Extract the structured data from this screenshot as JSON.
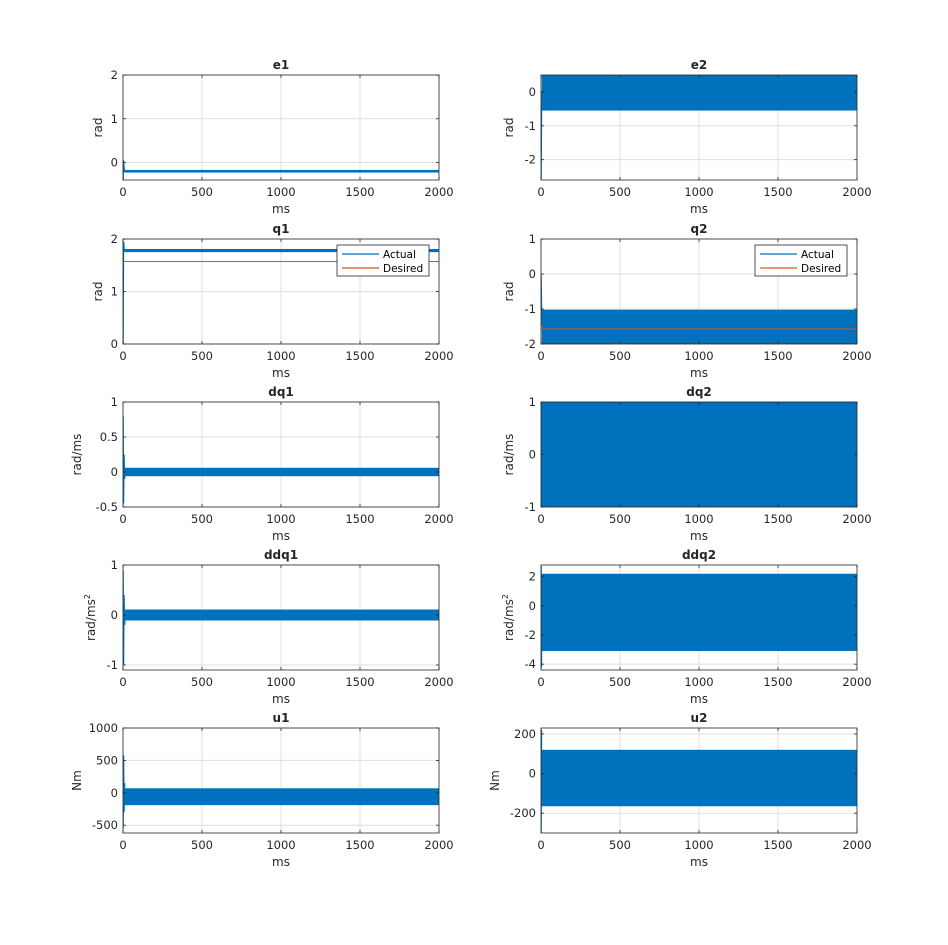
{
  "colors": {
    "actual": "#0072BD",
    "desired": "#D95319",
    "axis": "#262626",
    "grid": "#DFDFDF",
    "background": "#FFFFFF"
  },
  "chart_data": [
    {
      "id": "e1",
      "type": "line",
      "title": "e1",
      "xlabel": "ms",
      "ylabel": "rad",
      "xlim": [
        0,
        2000
      ],
      "ylim": [
        -0.4,
        2
      ],
      "xticks": [
        0,
        500,
        1000,
        1500,
        2000
      ],
      "yticks": [
        0,
        1,
        2
      ],
      "ytick_labels": [
        "0",
        "1",
        "2"
      ],
      "grid": true,
      "legend": null,
      "series": [
        {
          "color": "#0072BD",
          "points": [
            [
              0,
              -0.4
            ],
            [
              3,
              0.05
            ],
            [
              8,
              -0.2
            ],
            [
              2000,
              -0.2
            ]
          ],
          "band": {
            "x": [
              8,
              2000
            ],
            "y": [
              -0.23,
              -0.17
            ]
          }
        }
      ]
    },
    {
      "id": "e2",
      "type": "line",
      "title": "e2",
      "xlabel": "ms",
      "ylabel": "rad",
      "xlim": [
        0,
        2000
      ],
      "ylim": [
        -2.6,
        0.5
      ],
      "xticks": [
        0,
        500,
        1000,
        1500,
        2000
      ],
      "yticks": [
        -2,
        -1,
        0
      ],
      "ytick_labels": [
        "-2",
        "-1",
        "0"
      ],
      "grid": true,
      "legend": null,
      "series": [
        {
          "color": "#0072BD",
          "points": [
            [
              0,
              -2.6
            ],
            [
              3,
              -0.5
            ],
            [
              8,
              0
            ]
          ],
          "band": {
            "x": [
              5,
              2000
            ],
            "y": [
              -0.55,
              0.5
            ]
          }
        }
      ]
    },
    {
      "id": "q1",
      "type": "line",
      "title": "q1",
      "xlabel": "ms",
      "ylabel": "rad",
      "xlim": [
        0,
        2000
      ],
      "ylim": [
        0,
        2
      ],
      "xticks": [
        0,
        500,
        1000,
        1500,
        2000
      ],
      "yticks": [
        0,
        1,
        2
      ],
      "ytick_labels": [
        "0",
        "1",
        "2"
      ],
      "grid": true,
      "legend": {
        "location": "top-right",
        "entries": [
          "Actual",
          "Desired"
        ]
      },
      "series": [
        {
          "name": "Actual",
          "color": "#0072BD",
          "points": [
            [
              0,
              0
            ],
            [
              3,
              1.95
            ],
            [
              8,
              1.78
            ],
            [
              2000,
              1.78
            ]
          ],
          "band": {
            "x": [
              8,
              2000
            ],
            "y": [
              1.75,
              1.81
            ]
          }
        },
        {
          "name": "Desired",
          "color": "#D95319",
          "points": [
            [
              0,
              1.5708
            ],
            [
              2000,
              1.5708
            ]
          ]
        }
      ]
    },
    {
      "id": "q2",
      "type": "line",
      "title": "q2",
      "xlabel": "ms",
      "ylabel": "rad",
      "xlim": [
        0,
        2000
      ],
      "ylim": [
        -2,
        1
      ],
      "xticks": [
        0,
        500,
        1000,
        1500,
        2000
      ],
      "yticks": [
        -2,
        -1,
        0,
        1
      ],
      "ytick_labels": [
        "-2",
        "-1",
        "0",
        "1"
      ],
      "grid": true,
      "legend": {
        "location": "top-right",
        "entries": [
          "Actual",
          "Desired"
        ]
      },
      "series": [
        {
          "name": "Actual",
          "color": "#0072BD",
          "points": [
            [
              0,
              0
            ],
            [
              3,
              -1
            ],
            [
              8,
              -1.5
            ]
          ],
          "band": {
            "x": [
              5,
              2000
            ],
            "y": [
              -2,
              -1.02
            ]
          }
        },
        {
          "name": "Desired",
          "color": "#D95319",
          "points": [
            [
              0,
              -1.5708
            ],
            [
              2000,
              -1.5708
            ]
          ]
        }
      ]
    },
    {
      "id": "dq1",
      "type": "line",
      "title": "dq1",
      "xlabel": "ms",
      "ylabel": "rad/ms",
      "xlim": [
        0,
        2000
      ],
      "ylim": [
        -0.5,
        1
      ],
      "xticks": [
        0,
        500,
        1000,
        1500,
        2000
      ],
      "yticks": [
        -0.5,
        0,
        0.5,
        1
      ],
      "ytick_labels": [
        "-0.5",
        "0",
        "0.5",
        "1"
      ],
      "grid": true,
      "legend": null,
      "series": [
        {
          "color": "#0072BD",
          "points": [
            [
              0,
              0.8
            ],
            [
              3,
              -0.45
            ],
            [
              6,
              0.25
            ],
            [
              10,
              -0.1
            ],
            [
              14,
              0.05
            ]
          ],
          "band": {
            "x": [
              12,
              2000
            ],
            "y": [
              -0.06,
              0.06
            ]
          }
        }
      ]
    },
    {
      "id": "dq2",
      "type": "line",
      "title": "dq2",
      "xlabel": "ms",
      "ylabel": "rad/ms",
      "xlim": [
        0,
        2000
      ],
      "ylim": [
        -1,
        1
      ],
      "xticks": [
        0,
        500,
        1000,
        1500,
        2000
      ],
      "yticks": [
        -1,
        0,
        1
      ],
      "ytick_labels": [
        "-1",
        "0",
        "1"
      ],
      "grid": true,
      "legend": null,
      "series": [
        {
          "color": "#0072BD",
          "points": [],
          "band": {
            "x": [
              0,
              2000
            ],
            "y": [
              -1,
              1
            ]
          }
        }
      ]
    },
    {
      "id": "ddq1",
      "type": "line",
      "title": "ddq1",
      "xlabel": "ms",
      "ylabel": "rad/ms2",
      "ylabel_base": "rad/ms",
      "ylabel_sup": "2",
      "xlim": [
        0,
        2000
      ],
      "ylim": [
        -1.1,
        1
      ],
      "xticks": [
        0,
        500,
        1000,
        1500,
        2000
      ],
      "yticks": [
        -1,
        0,
        1
      ],
      "ytick_labels": [
        "-1",
        "0",
        "1"
      ],
      "grid": true,
      "legend": null,
      "series": [
        {
          "color": "#0072BD",
          "points": [
            [
              0,
              0.9
            ],
            [
              3,
              -1.0
            ],
            [
              6,
              0.4
            ],
            [
              10,
              -0.2
            ],
            [
              14,
              0.1
            ]
          ],
          "band": {
            "x": [
              12,
              2000
            ],
            "y": [
              -0.11,
              0.11
            ]
          }
        }
      ]
    },
    {
      "id": "ddq2",
      "type": "line",
      "title": "ddq2",
      "xlabel": "ms",
      "ylabel": "rad/ms2",
      "ylabel_base": "rad/ms",
      "ylabel_sup": "2",
      "xlim": [
        0,
        2000
      ],
      "ylim": [
        -4.4,
        2.8
      ],
      "xticks": [
        0,
        500,
        1000,
        1500,
        2000
      ],
      "yticks": [
        -4,
        -2,
        0,
        2
      ],
      "ytick_labels": [
        "-4",
        "-2",
        "0",
        "2"
      ],
      "grid": true,
      "legend": null,
      "series": [
        {
          "color": "#0072BD",
          "points": [
            [
              0,
              2.7
            ],
            [
              3,
              -4.2
            ]
          ],
          "band": {
            "x": [
              3,
              2000
            ],
            "y": [
              -3.1,
              2.2
            ]
          }
        }
      ]
    },
    {
      "id": "u1",
      "type": "line",
      "title": "u1",
      "xlabel": "ms",
      "ylabel": "Nm",
      "xlim": [
        0,
        2000
      ],
      "ylim": [
        -620,
        1000
      ],
      "xticks": [
        0,
        500,
        1000,
        1500,
        2000
      ],
      "yticks": [
        -500,
        0,
        500,
        1000
      ],
      "ytick_labels": [
        "-500",
        "0",
        "500",
        "1000"
      ],
      "grid": true,
      "legend": null,
      "series": [
        {
          "color": "#0072BD",
          "points": [
            [
              0,
              -550
            ],
            [
              3,
              580
            ],
            [
              6,
              -300
            ],
            [
              10,
              150
            ]
          ],
          "band": {
            "x": [
              10,
              2000
            ],
            "y": [
              -190,
              70
            ]
          }
        }
      ]
    },
    {
      "id": "u2",
      "type": "line",
      "title": "u2",
      "xlabel": "ms",
      "ylabel": "Nm",
      "xlim": [
        0,
        2000
      ],
      "ylim": [
        -300,
        230
      ],
      "xticks": [
        0,
        500,
        1000,
        1500,
        2000
      ],
      "yticks": [
        -200,
        0,
        200
      ],
      "ytick_labels": [
        "-200",
        "0",
        "200"
      ],
      "grid": true,
      "legend": null,
      "series": [
        {
          "color": "#0072BD",
          "points": [
            [
              0,
              -300
            ],
            [
              3,
              220
            ]
          ],
          "band": {
            "x": [
              3,
              2000
            ],
            "y": [
              -165,
              120
            ]
          }
        }
      ]
    }
  ]
}
